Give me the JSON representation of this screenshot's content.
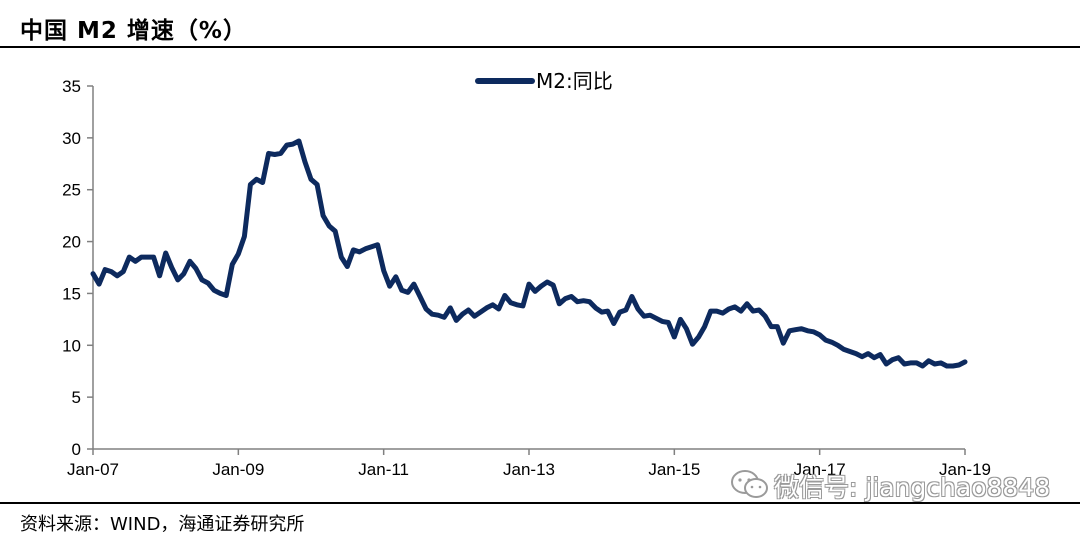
{
  "header": {
    "title": "中国 M2 增速（%）"
  },
  "footer": {
    "source": "资料来源：WIND，海通证券研究所"
  },
  "watermark": {
    "text": "微信号: jiangchao8848",
    "icon": "wechat-icon"
  },
  "colors": {
    "series": "#0d2a5e",
    "axis": "#808080"
  },
  "chart_data": {
    "type": "line",
    "title": "中国 M2 增速（%）",
    "xlabel": "",
    "ylabel": "",
    "ylim": [
      0,
      35
    ],
    "yticks": [
      0,
      5,
      10,
      15,
      20,
      25,
      30,
      35
    ],
    "xticks": [
      "Jan-07",
      "Jan-09",
      "Jan-11",
      "Jan-13",
      "Jan-15",
      "Jan-17",
      "Jan-19"
    ],
    "x_start": "2007-01",
    "x_end": "2019-01",
    "grid": false,
    "legend": "top-center",
    "series": [
      {
        "name": "M2:同比",
        "x": [
          "2007-01",
          "2007-02",
          "2007-03",
          "2007-04",
          "2007-05",
          "2007-06",
          "2007-07",
          "2007-08",
          "2007-09",
          "2007-10",
          "2007-11",
          "2007-12",
          "2008-01",
          "2008-02",
          "2008-03",
          "2008-04",
          "2008-05",
          "2008-06",
          "2008-07",
          "2008-08",
          "2008-09",
          "2008-10",
          "2008-11",
          "2008-12",
          "2009-01",
          "2009-02",
          "2009-03",
          "2009-04",
          "2009-05",
          "2009-06",
          "2009-07",
          "2009-08",
          "2009-09",
          "2009-10",
          "2009-11",
          "2009-12",
          "2010-01",
          "2010-02",
          "2010-03",
          "2010-04",
          "2010-05",
          "2010-06",
          "2010-07",
          "2010-08",
          "2010-09",
          "2010-10",
          "2010-11",
          "2010-12",
          "2011-01",
          "2011-02",
          "2011-03",
          "2011-04",
          "2011-05",
          "2011-06",
          "2011-07",
          "2011-08",
          "2011-09",
          "2011-10",
          "2011-11",
          "2011-12",
          "2012-01",
          "2012-02",
          "2012-03",
          "2012-04",
          "2012-05",
          "2012-06",
          "2012-07",
          "2012-08",
          "2012-09",
          "2012-10",
          "2012-11",
          "2012-12",
          "2013-01",
          "2013-02",
          "2013-03",
          "2013-04",
          "2013-05",
          "2013-06",
          "2013-07",
          "2013-08",
          "2013-09",
          "2013-10",
          "2013-11",
          "2013-12",
          "2014-01",
          "2014-02",
          "2014-03",
          "2014-04",
          "2014-05",
          "2014-06",
          "2014-07",
          "2014-08",
          "2014-09",
          "2014-10",
          "2014-11",
          "2014-12",
          "2015-01",
          "2015-02",
          "2015-03",
          "2015-04",
          "2015-05",
          "2015-06",
          "2015-07",
          "2015-08",
          "2015-09",
          "2015-10",
          "2015-11",
          "2015-12",
          "2016-01",
          "2016-02",
          "2016-03",
          "2016-04",
          "2016-05",
          "2016-06",
          "2016-07",
          "2016-08",
          "2016-09",
          "2016-10",
          "2016-11",
          "2016-12",
          "2017-01",
          "2017-02",
          "2017-03",
          "2017-04",
          "2017-05",
          "2017-06",
          "2017-07",
          "2017-08",
          "2017-09",
          "2017-10",
          "2017-11",
          "2017-12",
          "2018-01",
          "2018-02",
          "2018-03",
          "2018-04",
          "2018-05",
          "2018-06",
          "2018-07",
          "2018-08",
          "2018-09",
          "2018-10",
          "2018-11",
          "2018-12",
          "2019-01"
        ],
        "values": [
          16.9,
          15.9,
          17.3,
          17.1,
          16.7,
          17.1,
          18.5,
          18.1,
          18.5,
          18.5,
          18.5,
          16.7,
          18.9,
          17.5,
          16.3,
          16.9,
          18.1,
          17.4,
          16.3,
          16.0,
          15.3,
          15.0,
          14.8,
          17.8,
          18.8,
          20.5,
          25.5,
          26.0,
          25.7,
          28.5,
          28.4,
          28.5,
          29.3,
          29.4,
          29.7,
          27.7,
          26.0,
          25.5,
          22.5,
          21.5,
          21.0,
          18.5,
          17.6,
          19.2,
          19.0,
          19.3,
          19.5,
          19.7,
          17.2,
          15.7,
          16.6,
          15.3,
          15.1,
          15.9,
          14.7,
          13.5,
          13.0,
          12.9,
          12.7,
          13.6,
          12.4,
          13.0,
          13.4,
          12.8,
          13.2,
          13.6,
          13.9,
          13.5,
          14.8,
          14.1,
          13.9,
          13.8,
          15.9,
          15.2,
          15.7,
          16.1,
          15.8,
          14.0,
          14.5,
          14.7,
          14.2,
          14.3,
          14.2,
          13.6,
          13.2,
          13.3,
          12.1,
          13.2,
          13.4,
          14.7,
          13.5,
          12.8,
          12.9,
          12.6,
          12.3,
          12.2,
          10.8,
          12.5,
          11.6,
          10.1,
          10.8,
          11.8,
          13.3,
          13.3,
          13.1,
          13.5,
          13.7,
          13.3,
          14.0,
          13.3,
          13.4,
          12.8,
          11.8,
          11.8,
          10.2,
          11.4,
          11.5,
          11.6,
          11.4,
          11.3,
          11.0,
          10.5,
          10.3,
          10.0,
          9.6,
          9.4,
          9.2,
          8.9,
          9.2,
          8.8,
          9.1,
          8.2,
          8.6,
          8.8,
          8.2,
          8.3,
          8.3,
          8.0,
          8.5,
          8.2,
          8.3,
          8.0,
          8.0,
          8.1,
          8.4
        ]
      }
    ]
  }
}
